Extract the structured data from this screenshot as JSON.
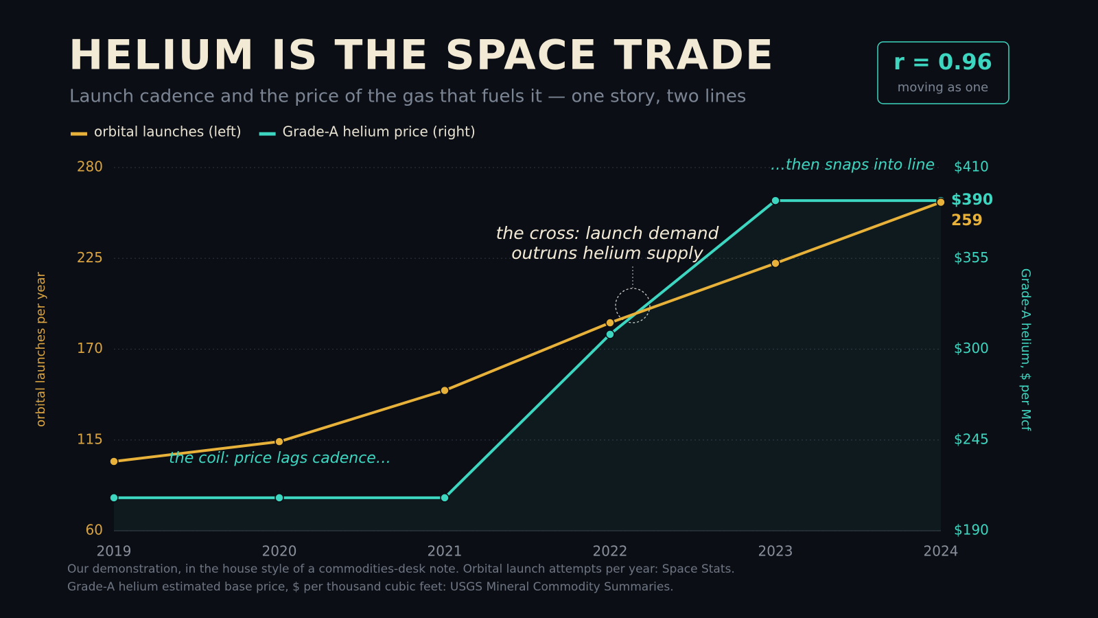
{
  "chart_data": {
    "type": "line",
    "title": "HELIUM IS THE SPACE TRADE",
    "subtitle": "Launch cadence and the price of the gas that fuels it — one story, two lines",
    "badge": {
      "value": "r = 0.96",
      "caption": "moving as one"
    },
    "x": [
      2019,
      2020,
      2021,
      2022,
      2023,
      2024
    ],
    "xlim": [
      2019,
      2024
    ],
    "xticks": [
      2019,
      2020,
      2021,
      2022,
      2023,
      2024
    ],
    "ylabel": "orbital launches per year",
    "y2label": "Grade-A helium, $ per Mcf",
    "ylim": [
      60,
      280
    ],
    "yticks": [
      60,
      115,
      170,
      225,
      280
    ],
    "y2lim": [
      190,
      410
    ],
    "y2ticks": [
      {
        "value": 190,
        "label": "$190"
      },
      {
        "value": 245,
        "label": "$245"
      },
      {
        "value": 300,
        "label": "$300"
      },
      {
        "value": 355,
        "label": "$355"
      },
      {
        "value": 410,
        "label": "$410"
      }
    ],
    "grid": true,
    "legend": "top-left",
    "series": [
      {
        "name": "orbital launches (left)",
        "color": "#e8b23a",
        "values": [
          102,
          114,
          145,
          186,
          222,
          259
        ]
      },
      {
        "name": "Grade-A helium price (right)",
        "color": "#3dd6c0",
        "axis": "y2",
        "values": [
          210,
          210,
          210,
          309,
          390,
          390
        ],
        "value_labels": [
          null,
          null,
          null,
          null,
          null,
          "$390"
        ]
      }
    ],
    "annotations": [
      {
        "text": "the coil: price lags cadence…"
      },
      {
        "text": "…then snaps into line"
      },
      {
        "lines": [
          "the cross: launch demand",
          "outruns helium supply"
        ]
      }
    ],
    "footnote": [
      "Our demonstration, in the house style of a commodities-desk note. Orbital launch attempts per year: Space Stats.",
      "Grade-A helium estimated base price, $ per thousand cubic feet: USGS Mineral Commodity Summaries."
    ]
  }
}
